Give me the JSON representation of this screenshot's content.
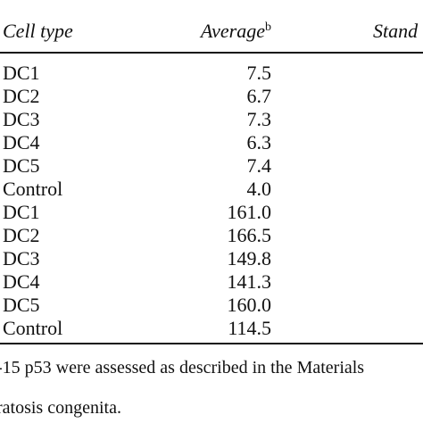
{
  "table": {
    "headers": {
      "cell_type": "Cell type",
      "average": "Average",
      "average_sup": "b",
      "standard": "Stand"
    },
    "rows": [
      {
        "cell_type": "DC1",
        "average": "7.5"
      },
      {
        "cell_type": "DC2",
        "average": "6.7"
      },
      {
        "cell_type": "DC3",
        "average": "7.3"
      },
      {
        "cell_type": "DC4",
        "average": "6.3"
      },
      {
        "cell_type": "DC5",
        "average": "7.4"
      },
      {
        "cell_type": "Control",
        "average": "4.0"
      },
      {
        "cell_type": "DC1",
        "average": "161.0"
      },
      {
        "cell_type": "DC2",
        "average": "166.5"
      },
      {
        "cell_type": "DC3",
        "average": "149.8"
      },
      {
        "cell_type": "DC4",
        "average": "141.3"
      },
      {
        "cell_type": "DC5",
        "average": "160.0"
      },
      {
        "cell_type": "Control",
        "average": "114.5"
      }
    ]
  },
  "footnotes": {
    "line1": "-15 p53 were assessed as described in the Materials",
    "line2": "ratosis congenita."
  }
}
